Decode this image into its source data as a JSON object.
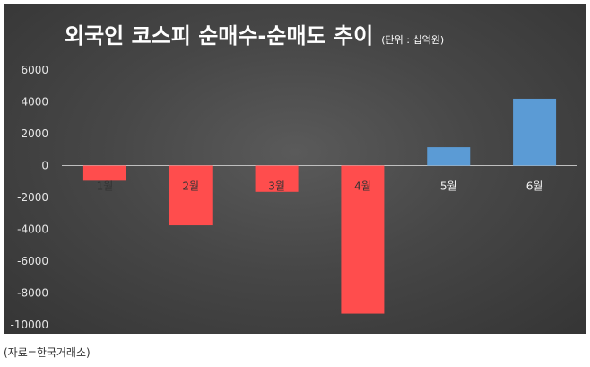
{
  "chart_data": {
    "type": "bar",
    "title": "외국인 코스피 순매수-순매도 추이",
    "unit_note": "(단위 : 십억원)",
    "categories": [
      "1월",
      "2월",
      "3월",
      "4월",
      "5월",
      "6월"
    ],
    "values": [
      -950,
      -3750,
      -1650,
      -9300,
      1150,
      4200
    ],
    "yticks": [
      6000,
      4000,
      2000,
      0,
      -2000,
      -4000,
      -6000,
      -8000,
      -10000
    ],
    "ylim": [
      -10000,
      6000
    ],
    "xlabel": "",
    "ylabel": "",
    "grid": false,
    "colors": {
      "negative": "#ff4d4d",
      "positive": "#5b9bd5",
      "axis": "#bfbfbf"
    }
  },
  "source": "(자료=한국거래소)"
}
